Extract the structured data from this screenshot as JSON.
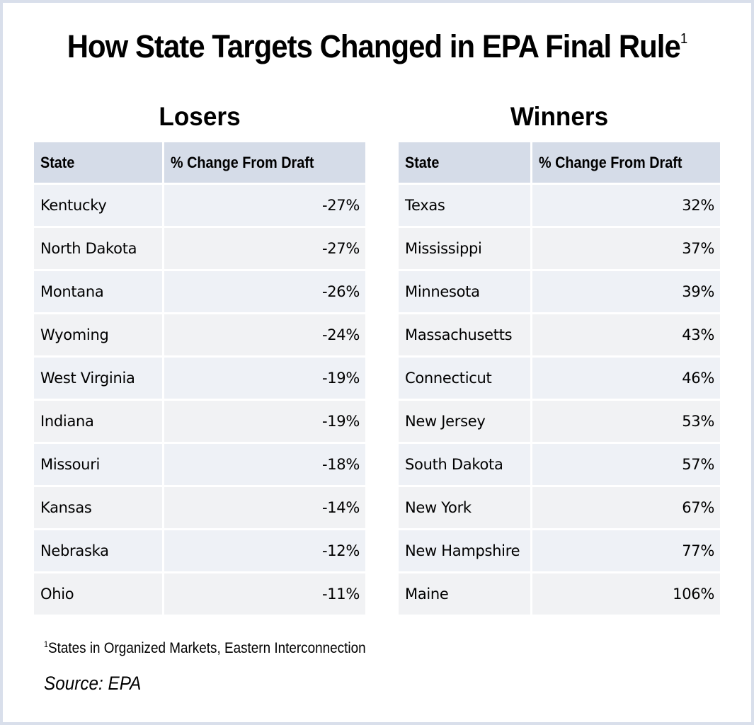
{
  "title": {
    "text": "How State Targets Changed in EPA Final Rule",
    "superscript": "1"
  },
  "losers": {
    "heading": "Losers",
    "columns": [
      "State",
      "% Change From Draft"
    ],
    "rows": [
      {
        "state": "Kentucky",
        "change": "-27%"
      },
      {
        "state": "North Dakota",
        "change": "-27%"
      },
      {
        "state": "Montana",
        "change": "-26%"
      },
      {
        "state": "Wyoming",
        "change": "-24%"
      },
      {
        "state": "West Virginia",
        "change": "-19%"
      },
      {
        "state": "Indiana",
        "change": "-19%"
      },
      {
        "state": "Missouri",
        "change": "-18%"
      },
      {
        "state": "Kansas",
        "change": "-14%"
      },
      {
        "state": "Nebraska",
        "change": "-12%"
      },
      {
        "state": "Ohio",
        "change": "-11%"
      }
    ]
  },
  "winners": {
    "heading": "Winners",
    "columns": [
      "State",
      "% Change From Draft"
    ],
    "rows": [
      {
        "state": "Texas",
        "change": "32%"
      },
      {
        "state": "Mississippi",
        "change": "37%"
      },
      {
        "state": "Minnesota",
        "change": "39%"
      },
      {
        "state": "Massachusetts",
        "change": "43%"
      },
      {
        "state": "Connecticut",
        "change": "46%"
      },
      {
        "state": "New Jersey",
        "change": "53%"
      },
      {
        "state": "South Dakota",
        "change": "57%"
      },
      {
        "state": "New York",
        "change": "67%"
      },
      {
        "state": "New Hampshire",
        "change": "77%"
      },
      {
        "state": "Maine",
        "change": "106%"
      }
    ]
  },
  "footnote": {
    "marker": "1",
    "text": "States in Organized Markets, Eastern Interconnection"
  },
  "source": "Source: EPA",
  "colors": {
    "frame": "#d9dfeb",
    "header_bg": "#d5dce8",
    "row_odd": "#eef1f6",
    "row_even": "#f1f2f4"
  }
}
